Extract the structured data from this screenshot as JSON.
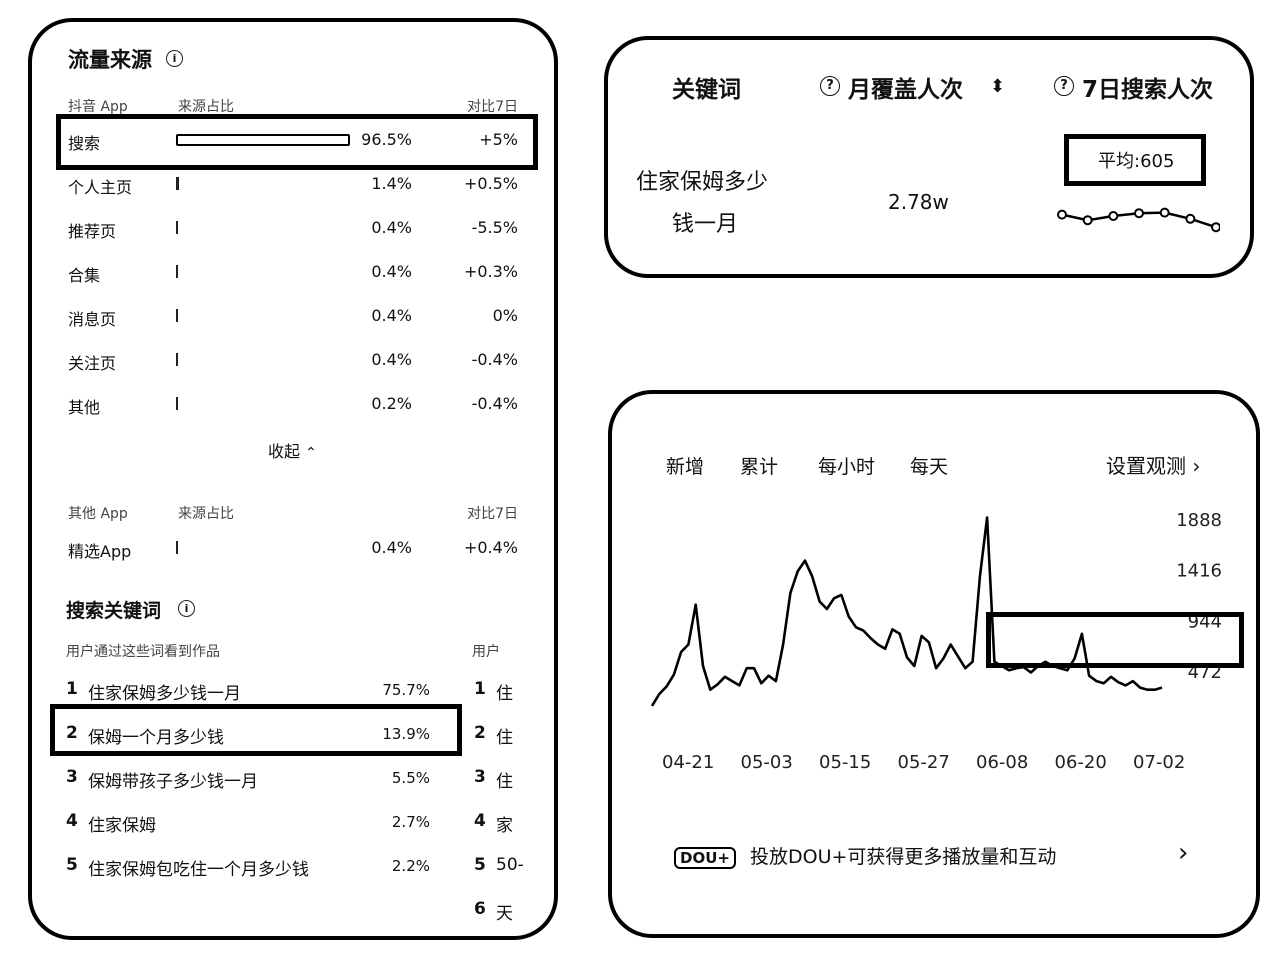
{
  "traffic": {
    "title": "流量来源",
    "app_header": {
      "col1": "抖音 App",
      "col2": "来源占比",
      "col3": "对比7日"
    },
    "rows": [
      {
        "label": "搜索",
        "share": "96.5%",
        "change": "+5%",
        "share_value": 96.5
      },
      {
        "label": "个人主页",
        "share": "1.4%",
        "change": "+0.5%",
        "share_value": 1.4
      },
      {
        "label": "推荐页",
        "share": "0.4%",
        "change": "-5.5%",
        "share_value": 0.4
      },
      {
        "label": "合集",
        "share": "0.4%",
        "change": "+0.3%",
        "share_value": 0.4
      },
      {
        "label": "消息页",
        "share": "0.4%",
        "change": "0%",
        "share_value": 0.4
      },
      {
        "label": "关注页",
        "share": "0.4%",
        "change": "-0.4%",
        "share_value": 0.4
      },
      {
        "label": "其他",
        "share": "0.2%",
        "change": "-0.4%",
        "share_value": 0.2
      }
    ],
    "collapse_label": "收起",
    "other_header": {
      "col1": "其他 App",
      "col2": "来源占比",
      "col3": "对比7日"
    },
    "other_rows": [
      {
        "label": "精选App",
        "share": "0.4%",
        "change": "+0.4%",
        "share_value": 0.4
      }
    ]
  },
  "search_keywords": {
    "title": "搜索关键词",
    "subtitle": "用户通过这些词看到作品",
    "right_header": "用户",
    "items": [
      {
        "rank": "1",
        "text": "住家保姆多少钱一月",
        "pct": "75.7%"
      },
      {
        "rank": "2",
        "text": "保姆一个月多少钱",
        "pct": "13.9%"
      },
      {
        "rank": "3",
        "text": "保姆带孩子多少钱一月",
        "pct": "5.5%"
      },
      {
        "rank": "4",
        "text": "住家保姆",
        "pct": "2.7%"
      },
      {
        "rank": "5",
        "text": "住家保姆包吃住一个月多少钱",
        "pct": "2.2%"
      }
    ],
    "right_items": [
      {
        "rank": "1",
        "text": "住"
      },
      {
        "rank": "2",
        "text": "住"
      },
      {
        "rank": "3",
        "text": "住"
      },
      {
        "rank": "4",
        "text": "家"
      },
      {
        "rank": "5",
        "text": "50-"
      },
      {
        "rank": "6",
        "text": "天"
      }
    ]
  },
  "keyword_card": {
    "col_keyword": "关键词",
    "col_monthly": "月覆盖人次",
    "col_weekly": "7日搜索人次",
    "keyword_line1": "住家保姆多少",
    "keyword_line2": "钱一月",
    "monthly_value": "2.78w",
    "avg_label": "平均:605",
    "sparkline": [
      0.55,
      0.35,
      0.5,
      0.6,
      0.62,
      0.4,
      0.1
    ]
  },
  "trend": {
    "tabs": [
      "新增",
      "累计",
      "每小时",
      "每天"
    ],
    "settings_label": "设置观测",
    "promo_badge": "DOU+",
    "promo_text": "投放DOU+可获得更多播放量和互动"
  },
  "chart_data": {
    "type": "line",
    "x_ticks": [
      "04-21",
      "05-03",
      "05-15",
      "05-27",
      "06-08",
      "06-20",
      "07-02"
    ],
    "y_ticks": [
      472,
      944,
      1416,
      1888
    ],
    "ylim": [
      0,
      2100
    ],
    "values": [
      150,
      260,
      330,
      440,
      650,
      720,
      1090,
      520,
      300,
      350,
      420,
      380,
      340,
      500,
      500,
      360,
      430,
      380,
      720,
      1200,
      1400,
      1500,
      1350,
      1120,
      1050,
      1150,
      1180,
      980,
      880,
      850,
      780,
      720,
      680,
      860,
      820,
      600,
      520,
      800,
      740,
      500,
      590,
      720,
      610,
      500,
      560,
      1350,
      1900,
      560,
      520,
      480,
      500,
      510,
      460,
      520,
      560,
      520,
      500,
      480,
      590,
      820,
      430,
      380,
      360,
      420,
      370,
      340,
      380,
      320,
      300,
      300,
      320
    ]
  }
}
